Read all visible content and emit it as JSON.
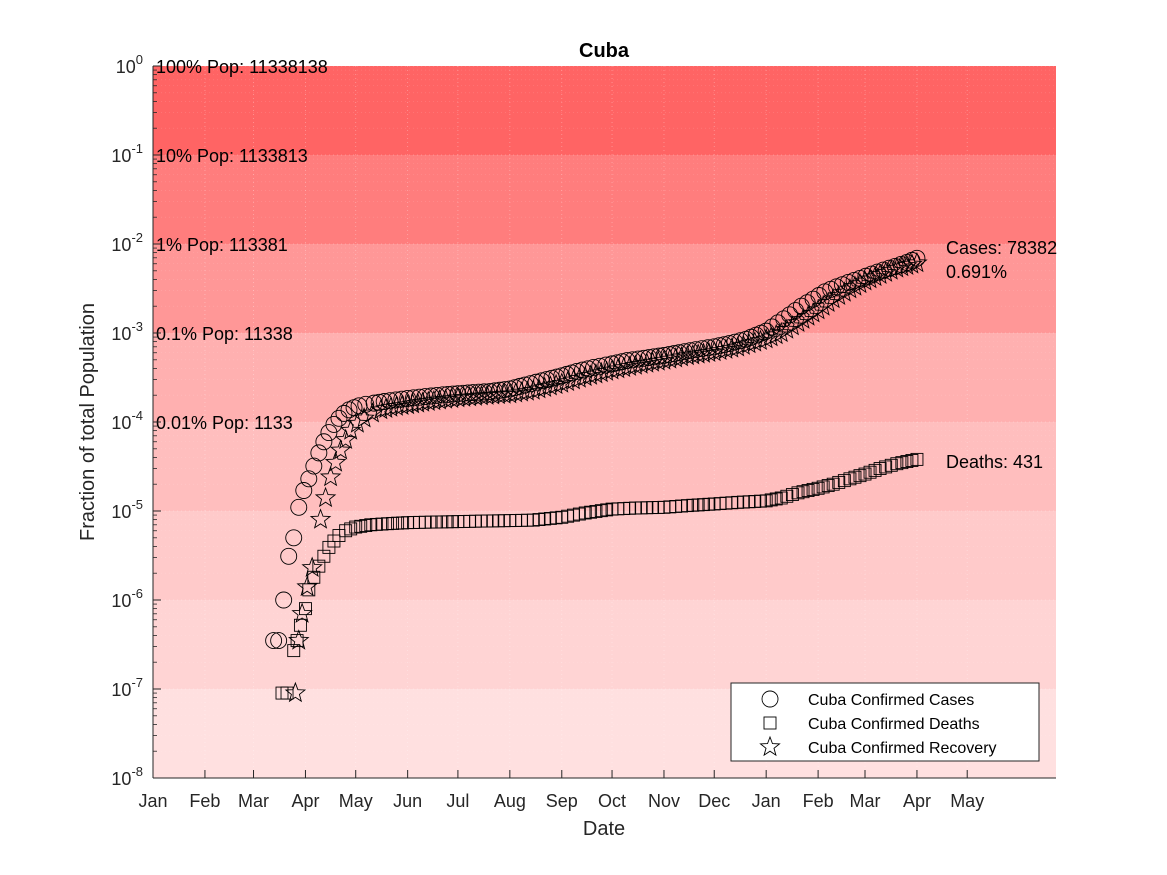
{
  "chart_data": {
    "type": "scatter",
    "title": "Cuba",
    "xlabel": "Date",
    "ylabel": "Fraction of total Population",
    "yscale": "log",
    "ylim": [
      1e-08,
      1
    ],
    "xlim": [
      "2020-01-01",
      "2021-06-23"
    ],
    "grid": true,
    "y_ticks": [
      {
        "value": 1e-08,
        "base": "10",
        "exp": "-8"
      },
      {
        "value": 1e-07,
        "base": "10",
        "exp": "-7"
      },
      {
        "value": 1e-06,
        "base": "10",
        "exp": "-6"
      },
      {
        "value": 1e-05,
        "base": "10",
        "exp": "-5"
      },
      {
        "value": 0.0001,
        "base": "10",
        "exp": "-4"
      },
      {
        "value": 0.001,
        "base": "10",
        "exp": "-3"
      },
      {
        "value": 0.01,
        "base": "10",
        "exp": "-2"
      },
      {
        "value": 0.1,
        "base": "10",
        "exp": "-1"
      },
      {
        "value": 1,
        "base": "10",
        "exp": "0"
      }
    ],
    "x_ticks": [
      {
        "date": "2020-01-01",
        "label": "Jan"
      },
      {
        "date": "2020-02-01",
        "label": "Feb"
      },
      {
        "date": "2020-03-01",
        "label": "Mar"
      },
      {
        "date": "2020-04-01",
        "label": "Apr"
      },
      {
        "date": "2020-05-01",
        "label": "May"
      },
      {
        "date": "2020-06-01",
        "label": "Jun"
      },
      {
        "date": "2020-07-01",
        "label": "Jul"
      },
      {
        "date": "2020-08-01",
        "label": "Aug"
      },
      {
        "date": "2020-09-01",
        "label": "Sep"
      },
      {
        "date": "2020-10-01",
        "label": "Oct"
      },
      {
        "date": "2020-11-01",
        "label": "Nov"
      },
      {
        "date": "2020-12-01",
        "label": "Dec"
      },
      {
        "date": "2021-01-01",
        "label": "Jan"
      },
      {
        "date": "2021-02-01",
        "label": "Feb"
      },
      {
        "date": "2021-03-01",
        "label": "Mar"
      },
      {
        "date": "2021-04-01",
        "label": "Apr"
      },
      {
        "date": "2021-05-01",
        "label": "May"
      }
    ],
    "population_bands": [
      {
        "from": 0.1,
        "to": 1,
        "label": "100% Pop: 11338138",
        "color": "#ff6464"
      },
      {
        "from": 0.01,
        "to": 0.1,
        "label": "10% Pop: 1133813",
        "color": "#ff7d7d"
      },
      {
        "from": 0.001,
        "to": 0.01,
        "label": "1% Pop: 113381",
        "color": "#ff9797"
      },
      {
        "from": 0.0001,
        "to": 0.001,
        "label": "0.1% Pop: 11338",
        "color": "#ffb0b0"
      },
      {
        "from": 1e-05,
        "to": 0.0001,
        "label": "0.01% Pop: 1133",
        "color": "#ffbebe"
      },
      {
        "from": 1e-06,
        "to": 1e-05,
        "label": "",
        "color": "#ffcaca"
      },
      {
        "from": 1e-07,
        "to": 1e-06,
        "label": "",
        "color": "#ffd4d4"
      },
      {
        "from": 1e-08,
        "to": 1e-07,
        "label": "",
        "color": "#ffe0e0"
      }
    ],
    "annotations": {
      "cases_line1": "Cases: 78382",
      "cases_line2": "0.691%",
      "deaths": "Deaths: 431"
    },
    "series": [
      {
        "name": "Cuba Confirmed Cases",
        "marker": "circle",
        "points": [
          [
            "2020-03-13",
            3.5e-07
          ],
          [
            "2020-03-16",
            3.5e-07
          ],
          [
            "2020-03-19",
            1e-06
          ],
          [
            "2020-03-22",
            3.1e-06
          ],
          [
            "2020-03-25",
            5e-06
          ],
          [
            "2020-03-28",
            1.1e-05
          ],
          [
            "2020-03-31",
            1.7e-05
          ],
          [
            "2020-04-03",
            2.3e-05
          ],
          [
            "2020-04-06",
            3.2e-05
          ],
          [
            "2020-04-09",
            4.5e-05
          ],
          [
            "2020-04-12",
            6e-05
          ],
          [
            "2020-04-15",
            7.6e-05
          ],
          [
            "2020-04-18",
            9.4e-05
          ],
          [
            "2020-04-21",
            0.00011
          ],
          [
            "2020-04-24",
            0.000125
          ],
          [
            "2020-04-27",
            0.000137
          ],
          [
            "2020-04-30",
            0.000145
          ],
          [
            "2020-05-03",
            0.000152
          ],
          [
            "2020-05-07",
            0.000158
          ],
          [
            "2020-05-12",
            0.000163
          ],
          [
            "2020-05-18",
            0.00017
          ],
          [
            "2020-05-25",
            0.000177
          ],
          [
            "2020-06-01",
            0.000184
          ],
          [
            "2020-06-08",
            0.00019
          ],
          [
            "2020-06-15",
            0.000196
          ],
          [
            "2020-06-22",
            0.000202
          ],
          [
            "2020-07-01",
            0.000208
          ],
          [
            "2020-07-10",
            0.000214
          ],
          [
            "2020-07-20",
            0.00022
          ],
          [
            "2020-08-01",
            0.000235
          ],
          [
            "2020-08-10",
            0.00026
          ],
          [
            "2020-08-20",
            0.00029
          ],
          [
            "2020-09-01",
            0.00033
          ],
          [
            "2020-09-10",
            0.00037
          ],
          [
            "2020-09-20",
            0.00041
          ],
          [
            "2020-10-01",
            0.00045
          ],
          [
            "2020-10-10",
            0.00049
          ],
          [
            "2020-10-20",
            0.00052
          ],
          [
            "2020-11-01",
            0.00056
          ],
          [
            "2020-11-10",
            0.0006
          ],
          [
            "2020-11-20",
            0.00065
          ],
          [
            "2020-12-01",
            0.0007
          ],
          [
            "2020-12-10",
            0.00076
          ],
          [
            "2020-12-20",
            0.00085
          ],
          [
            "2021-01-01",
            0.00105
          ],
          [
            "2021-01-08",
            0.0013
          ],
          [
            "2021-01-15",
            0.0016
          ],
          [
            "2021-01-22",
            0.002
          ],
          [
            "2021-01-29",
            0.0024
          ],
          [
            "2021-02-05",
            0.0029
          ],
          [
            "2021-02-12",
            0.0033
          ],
          [
            "2021-02-19",
            0.0037
          ],
          [
            "2021-02-26",
            0.0041
          ],
          [
            "2021-03-05",
            0.0046
          ],
          [
            "2021-03-12",
            0.0051
          ],
          [
            "2021-03-19",
            0.0056
          ],
          [
            "2021-03-26",
            0.0062
          ],
          [
            "2021-04-01",
            0.00691
          ]
        ]
      },
      {
        "name": "Cuba Confirmed Deaths",
        "marker": "square",
        "points": [
          [
            "2020-03-18",
            9e-08
          ],
          [
            "2020-03-21",
            9e-08
          ],
          [
            "2020-03-25",
            2.7e-07
          ],
          [
            "2020-03-27",
            3.5e-07
          ],
          [
            "2020-03-29",
            5.2e-07
          ],
          [
            "2020-04-01",
            8e-07
          ],
          [
            "2020-04-03",
            1.3e-06
          ],
          [
            "2020-04-06",
            1.8e-06
          ],
          [
            "2020-04-09",
            2.4e-06
          ],
          [
            "2020-04-12",
            3.1e-06
          ],
          [
            "2020-04-15",
            3.9e-06
          ],
          [
            "2020-04-18",
            4.6e-06
          ],
          [
            "2020-04-21",
            5.3e-06
          ],
          [
            "2020-04-25",
            6e-06
          ],
          [
            "2020-05-01",
            6.6e-06
          ],
          [
            "2020-05-10",
            7e-06
          ],
          [
            "2020-05-20",
            7.2e-06
          ],
          [
            "2020-06-01",
            7.4e-06
          ],
          [
            "2020-06-15",
            7.5e-06
          ],
          [
            "2020-07-01",
            7.6e-06
          ],
          [
            "2020-07-15",
            7.7e-06
          ],
          [
            "2020-08-01",
            7.8e-06
          ],
          [
            "2020-08-15",
            7.9e-06
          ],
          [
            "2020-09-01",
            8.5e-06
          ],
          [
            "2020-09-15",
            9.5e-06
          ],
          [
            "2020-10-01",
            1.05e-05
          ],
          [
            "2020-10-15",
            1.08e-05
          ],
          [
            "2020-11-01",
            1.1e-05
          ],
          [
            "2020-11-15",
            1.15e-05
          ],
          [
            "2020-12-01",
            1.2e-05
          ],
          [
            "2020-12-15",
            1.25e-05
          ],
          [
            "2021-01-01",
            1.3e-05
          ],
          [
            "2021-01-10",
            1.4e-05
          ],
          [
            "2021-01-20",
            1.6e-05
          ],
          [
            "2021-02-01",
            1.8e-05
          ],
          [
            "2021-02-10",
            2e-05
          ],
          [
            "2021-02-20",
            2.3e-05
          ],
          [
            "2021-03-01",
            2.6e-05
          ],
          [
            "2021-03-10",
            3e-05
          ],
          [
            "2021-03-20",
            3.4e-05
          ],
          [
            "2021-04-01",
            3.8e-05
          ]
        ]
      },
      {
        "name": "Cuba Confirmed Recovery",
        "marker": "star",
        "points": [
          [
            "2020-03-26",
            9e-08
          ],
          [
            "2020-03-28",
            3.5e-07
          ],
          [
            "2020-03-30",
            7e-07
          ],
          [
            "2020-04-02",
            1.4e-06
          ],
          [
            "2020-04-05",
            2.3e-06
          ],
          [
            "2020-04-10",
            8e-06
          ],
          [
            "2020-04-13",
            1.4e-05
          ],
          [
            "2020-04-16",
            2.4e-05
          ],
          [
            "2020-04-19",
            3.5e-05
          ],
          [
            "2020-04-22",
            4.8e-05
          ],
          [
            "2020-04-25",
            6.3e-05
          ],
          [
            "2020-04-28",
            8e-05
          ],
          [
            "2020-05-02",
            9.6e-05
          ],
          [
            "2020-05-06",
            0.00011
          ],
          [
            "2020-05-11",
            0.000125
          ],
          [
            "2020-05-16",
            0.000136
          ],
          [
            "2020-05-22",
            0.000145
          ],
          [
            "2020-06-01",
            0.000155
          ],
          [
            "2020-06-10",
            0.000165
          ],
          [
            "2020-06-20",
            0.000175
          ],
          [
            "2020-07-01",
            0.000185
          ],
          [
            "2020-07-15",
            0.000195
          ],
          [
            "2020-08-01",
            0.000205
          ],
          [
            "2020-08-15",
            0.000225
          ],
          [
            "2020-09-01",
            0.00027
          ],
          [
            "2020-09-15",
            0.00032
          ],
          [
            "2020-10-01",
            0.00038
          ],
          [
            "2020-10-15",
            0.00043
          ],
          [
            "2020-11-01",
            0.00049
          ],
          [
            "2020-11-15",
            0.00055
          ],
          [
            "2020-12-01",
            0.00061
          ],
          [
            "2020-12-15",
            0.00069
          ],
          [
            "2021-01-01",
            0.00085
          ],
          [
            "2021-01-10",
            0.001
          ],
          [
            "2021-01-20",
            0.0013
          ],
          [
            "2021-02-01",
            0.0018
          ],
          [
            "2021-02-10",
            0.0024
          ],
          [
            "2021-02-20",
            0.0031
          ],
          [
            "2021-03-01",
            0.0038
          ],
          [
            "2021-03-10",
            0.0045
          ],
          [
            "2021-03-20",
            0.0053
          ],
          [
            "2021-04-01",
            0.0061
          ]
        ]
      }
    ],
    "legend": {
      "position": "bottom-right",
      "entries": [
        {
          "marker": "circle",
          "label": "Cuba Confirmed Cases"
        },
        {
          "marker": "square",
          "label": "Cuba Confirmed Deaths"
        },
        {
          "marker": "star",
          "label": "Cuba Confirmed Recovery"
        }
      ]
    }
  }
}
